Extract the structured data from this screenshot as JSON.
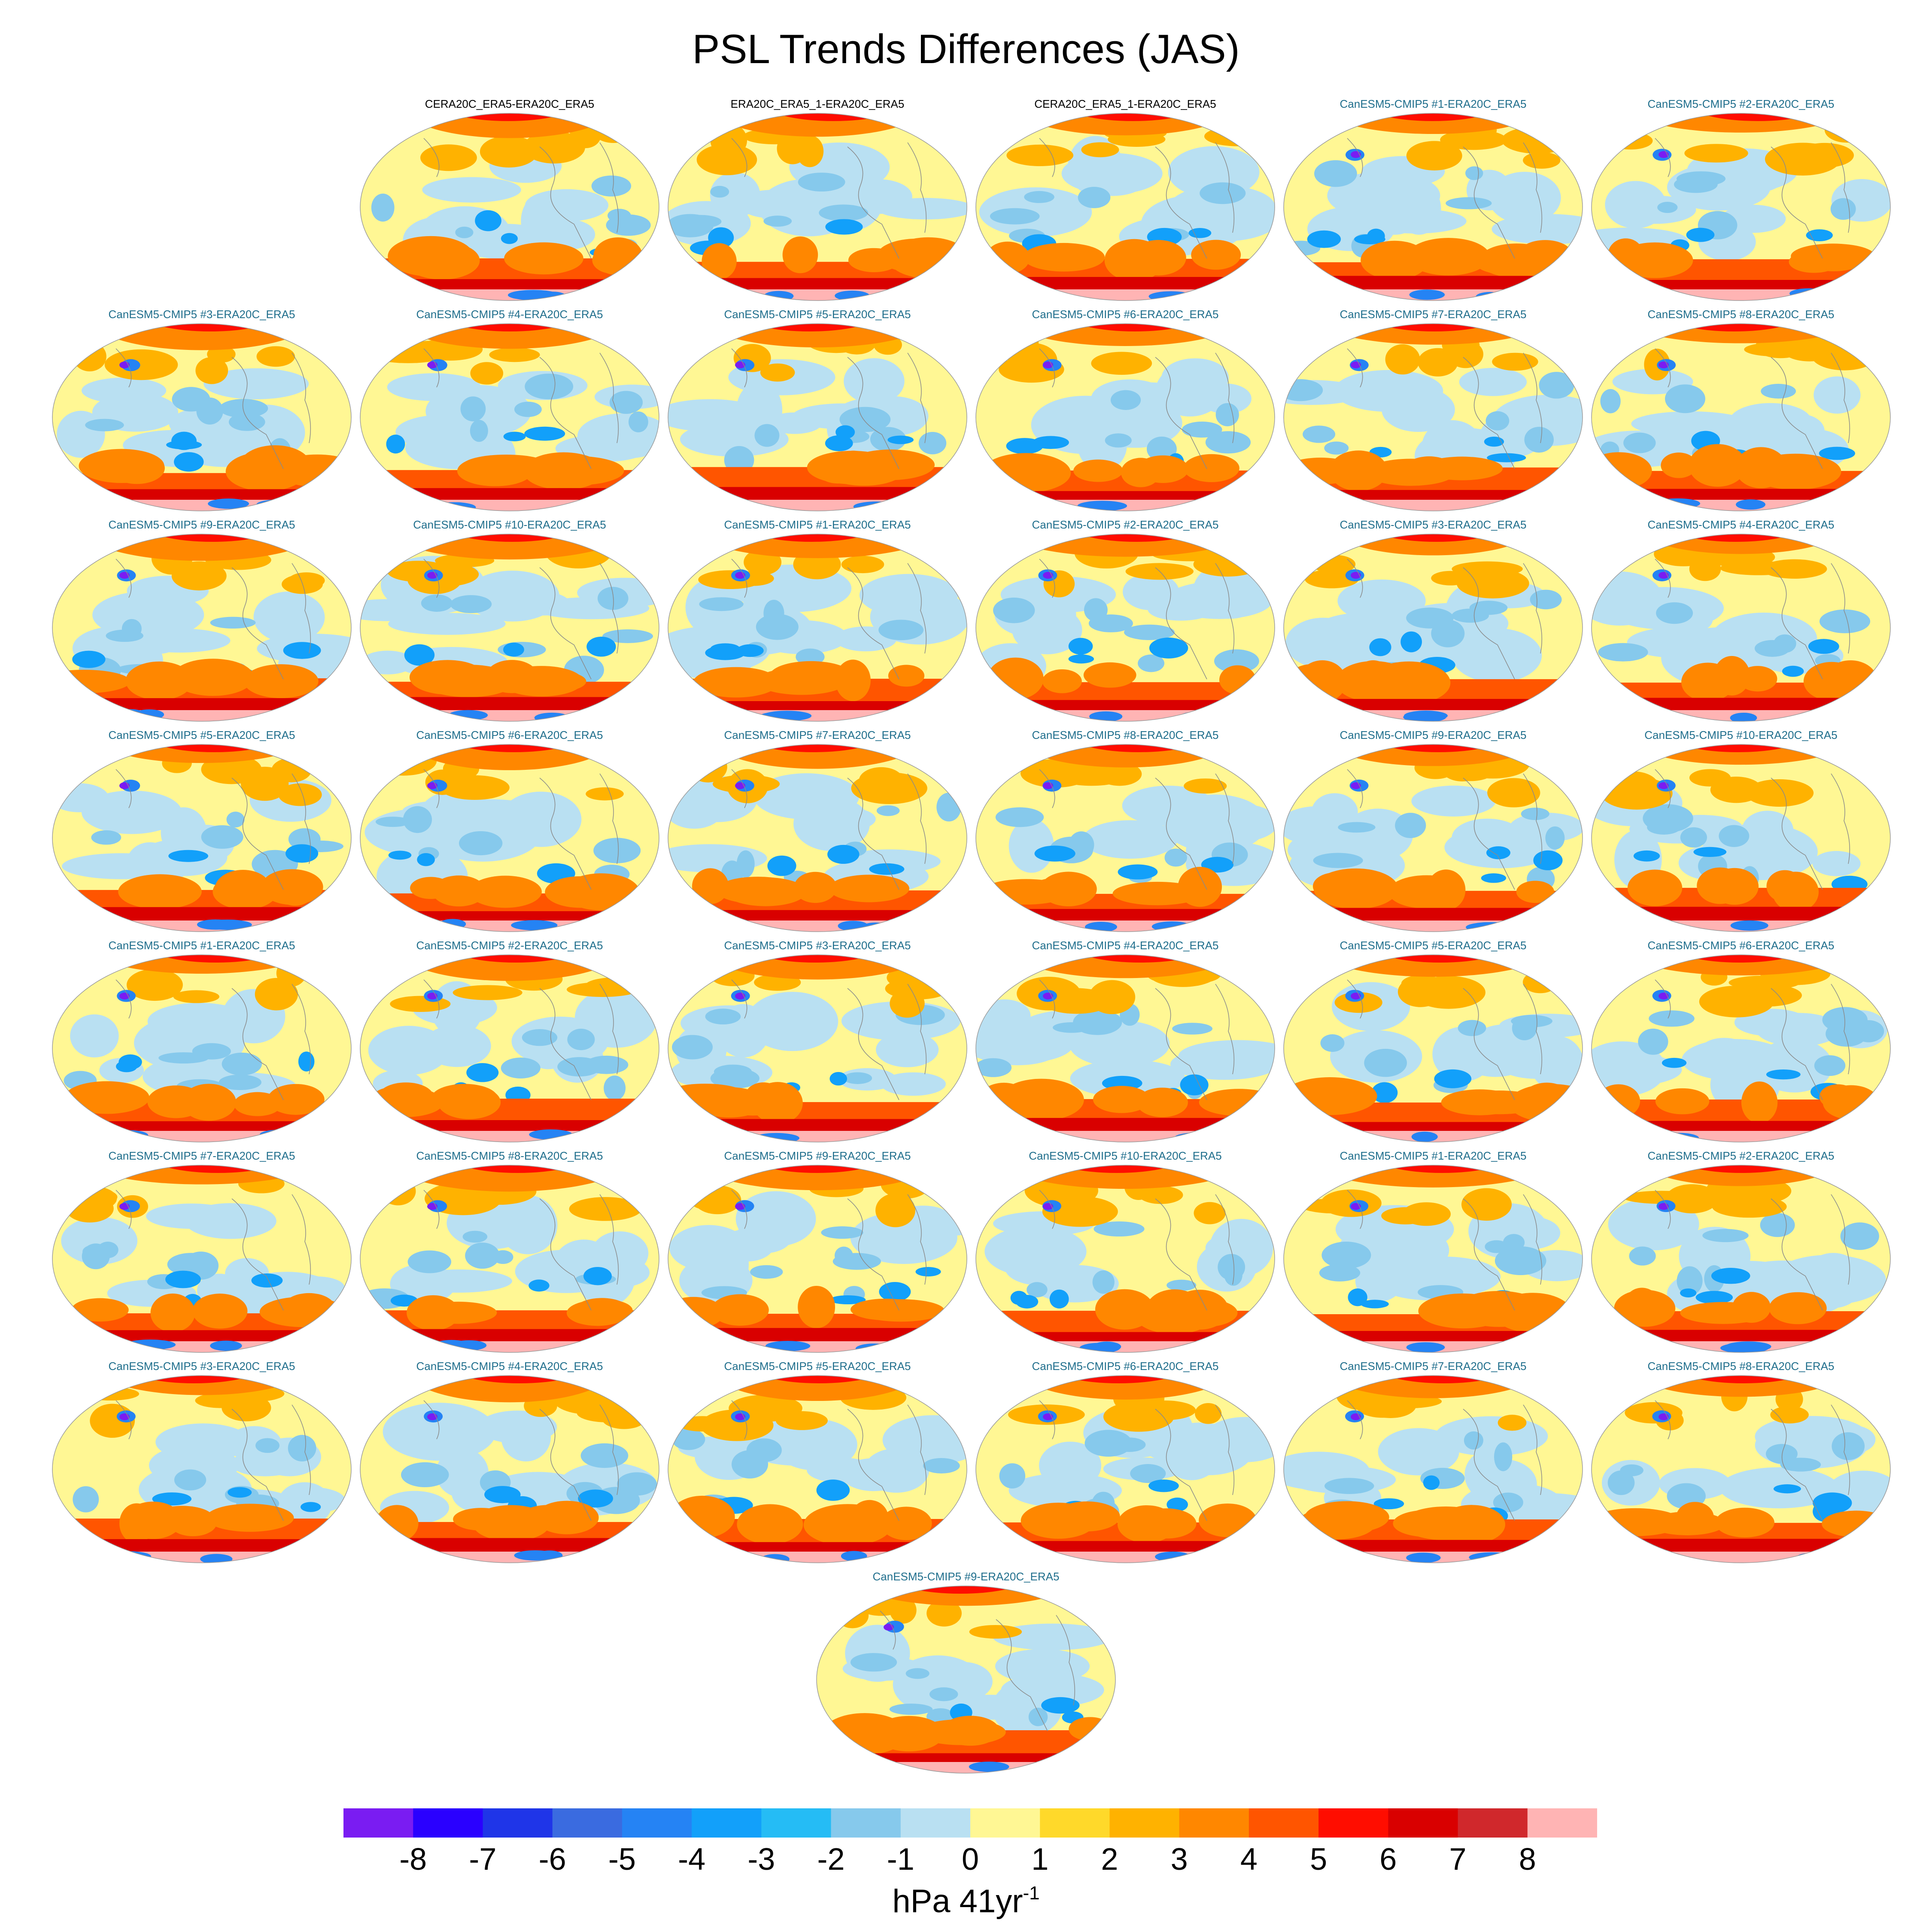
{
  "title": "PSL Trends Differences (JAS)",
  "panels": [
    {
      "title": "CERA20C_ERA5-ERA20C_ERA5",
      "kind": "obs"
    },
    {
      "title": "ERA20C_ERA5_1-ERA20C_ERA5",
      "kind": "obs"
    },
    {
      "title": "CERA20C_ERA5_1-ERA20C_ERA5",
      "kind": "obs"
    },
    {
      "title": "CanESM5-CMIP5 #1-ERA20C_ERA5",
      "kind": "model"
    },
    {
      "title": "CanESM5-CMIP5 #2-ERA20C_ERA5",
      "kind": "model"
    },
    {
      "title": "CanESM5-CMIP5 #3-ERA20C_ERA5",
      "kind": "model"
    },
    {
      "title": "CanESM5-CMIP5 #4-ERA20C_ERA5",
      "kind": "model"
    },
    {
      "title": "CanESM5-CMIP5 #5-ERA20C_ERA5",
      "kind": "model"
    },
    {
      "title": "CanESM5-CMIP5 #6-ERA20C_ERA5",
      "kind": "model"
    },
    {
      "title": "CanESM5-CMIP5 #7-ERA20C_ERA5",
      "kind": "model"
    },
    {
      "title": "CanESM5-CMIP5 #8-ERA20C_ERA5",
      "kind": "model"
    },
    {
      "title": "CanESM5-CMIP5 #9-ERA20C_ERA5",
      "kind": "model"
    },
    {
      "title": "CanESM5-CMIP5 #10-ERA20C_ERA5",
      "kind": "model"
    },
    {
      "title": "CanESM5-CMIP5 #1-ERA20C_ERA5",
      "kind": "model"
    },
    {
      "title": "CanESM5-CMIP5 #2-ERA20C_ERA5",
      "kind": "model"
    },
    {
      "title": "CanESM5-CMIP5 #3-ERA20C_ERA5",
      "kind": "model"
    },
    {
      "title": "CanESM5-CMIP5 #4-ERA20C_ERA5",
      "kind": "model"
    },
    {
      "title": "CanESM5-CMIP5 #5-ERA20C_ERA5",
      "kind": "model"
    },
    {
      "title": "CanESM5-CMIP5 #6-ERA20C_ERA5",
      "kind": "model"
    },
    {
      "title": "CanESM5-CMIP5 #7-ERA20C_ERA5",
      "kind": "model"
    },
    {
      "title": "CanESM5-CMIP5 #8-ERA20C_ERA5",
      "kind": "model"
    },
    {
      "title": "CanESM5-CMIP5 #9-ERA20C_ERA5",
      "kind": "model"
    },
    {
      "title": "CanESM5-CMIP5 #10-ERA20C_ERA5",
      "kind": "model"
    },
    {
      "title": "CanESM5-CMIP5 #1-ERA20C_ERA5",
      "kind": "model"
    },
    {
      "title": "CanESM5-CMIP5 #2-ERA20C_ERA5",
      "kind": "model"
    },
    {
      "title": "CanESM5-CMIP5 #3-ERA20C_ERA5",
      "kind": "model"
    },
    {
      "title": "CanESM5-CMIP5 #4-ERA20C_ERA5",
      "kind": "model"
    },
    {
      "title": "CanESM5-CMIP5 #5-ERA20C_ERA5",
      "kind": "model"
    },
    {
      "title": "CanESM5-CMIP5 #6-ERA20C_ERA5",
      "kind": "model"
    },
    {
      "title": "CanESM5-CMIP5 #7-ERA20C_ERA5",
      "kind": "model"
    },
    {
      "title": "CanESM5-CMIP5 #8-ERA20C_ERA5",
      "kind": "model"
    },
    {
      "title": "CanESM5-CMIP5 #9-ERA20C_ERA5",
      "kind": "model"
    },
    {
      "title": "CanESM5-CMIP5 #10-ERA20C_ERA5",
      "kind": "model"
    },
    {
      "title": "CanESM5-CMIP5 #1-ERA20C_ERA5",
      "kind": "model"
    },
    {
      "title": "CanESM5-CMIP5 #2-ERA20C_ERA5",
      "kind": "model"
    },
    {
      "title": "CanESM5-CMIP5 #3-ERA20C_ERA5",
      "kind": "model"
    },
    {
      "title": "CanESM5-CMIP5 #4-ERA20C_ERA5",
      "kind": "model"
    },
    {
      "title": "CanESM5-CMIP5 #5-ERA20C_ERA5",
      "kind": "model"
    },
    {
      "title": "CanESM5-CMIP5 #6-ERA20C_ERA5",
      "kind": "model"
    },
    {
      "title": "CanESM5-CMIP5 #7-ERA20C_ERA5",
      "kind": "model"
    },
    {
      "title": "CanESM5-CMIP5 #8-ERA20C_ERA5",
      "kind": "model"
    },
    {
      "title": "CanESM5-CMIP5 #9-ERA20C_ERA5",
      "kind": "model"
    }
  ],
  "colorbar": {
    "labels": [
      "-8",
      "-7",
      "-6",
      "-5",
      "-4",
      "-3",
      "-2",
      "-1",
      "0",
      "1",
      "2",
      "3",
      "4",
      "5",
      "6",
      "7",
      "8"
    ],
    "colors": [
      "#7a1cf2",
      "#2a00ff",
      "#1f35e8",
      "#3a6be0",
      "#2583f4",
      "#12a0fa",
      "#25bcf5",
      "#86c9ec",
      "#b9e0f2",
      "#fff794",
      "#ffd92a",
      "#ffb200",
      "#ff8700",
      "#ff5500",
      "#ff0d00",
      "#d90000",
      "#d0282c",
      "#ffb4b4"
    ],
    "units": "hPa 41yr",
    "units_exponent": "-1"
  }
}
